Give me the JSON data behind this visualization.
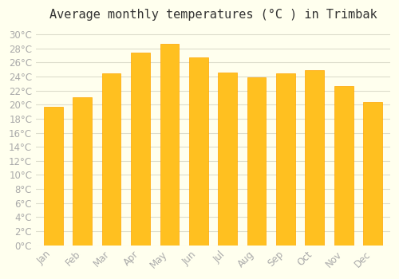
{
  "title": "Average monthly temperatures (°C ) in Trimbak",
  "months": [
    "Jan",
    "Feb",
    "Mar",
    "Apr",
    "May",
    "Jun",
    "Jul",
    "Aug",
    "Sep",
    "Oct",
    "Nov",
    "Dec"
  ],
  "values": [
    19.7,
    21.1,
    24.5,
    27.4,
    28.7,
    26.7,
    24.6,
    23.9,
    24.4,
    24.9,
    22.6,
    20.4
  ],
  "bar_color_main": "#FFC020",
  "bar_color_edge": "#FFA500",
  "background_color": "#FFFFEE",
  "grid_color": "#DDDDCC",
  "ylim": [
    0,
    31
  ],
  "ytick_step": 2,
  "title_fontsize": 11,
  "tick_fontsize": 8.5,
  "tick_label_color": "#AAAAAA",
  "axis_label_color": "#AAAAAA"
}
